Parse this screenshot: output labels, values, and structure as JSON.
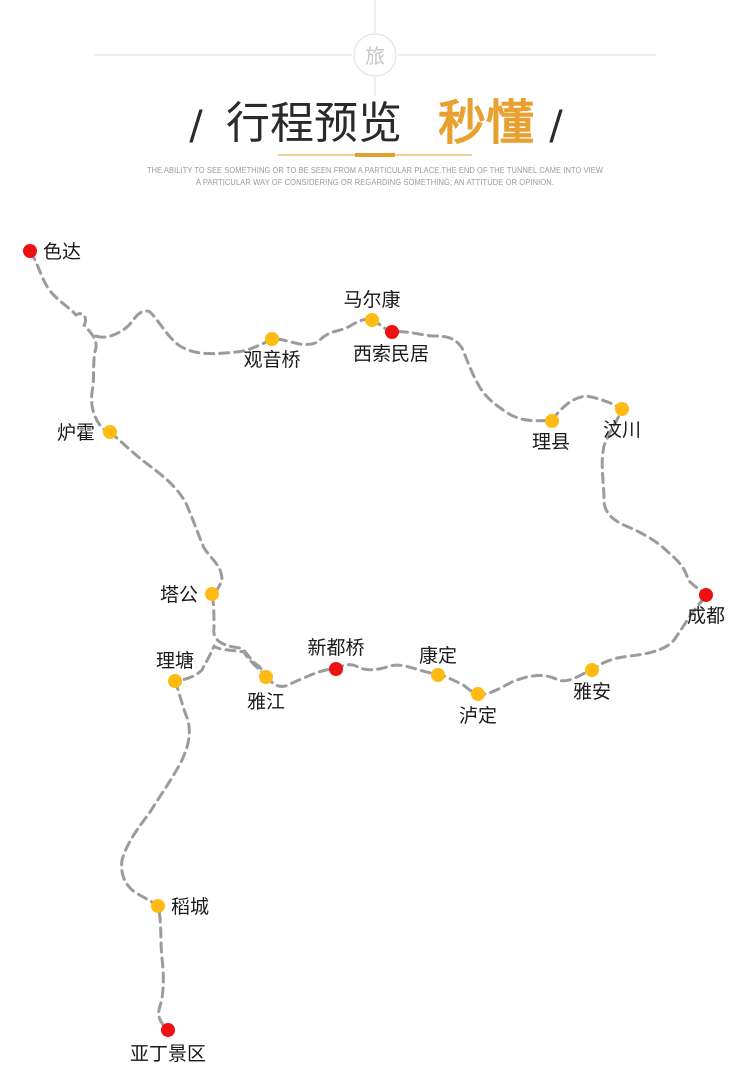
{
  "header": {
    "badge_char": "旅",
    "slash_left": "/",
    "title": "行程预览",
    "brand": "秒懂",
    "slash_right": "/",
    "subtitle_line1": "THE ABILITY TO SEE SOMETHING OR TO BE SEEN FROM A PARTICULAR PLACE.THE END OF THE TUNNEL CAME INTO VIEW",
    "subtitle_line2": "A PARTICULAR WAY OF CONSIDERING OR REGARDING SOMETHING; AN ATTITUDE OR OPINION."
  },
  "colors": {
    "route": "#9b9b9b",
    "stop_major": "#ee1111",
    "stop_minor": "#ffbb11",
    "brand": "#e8a030",
    "accent_line": "#e0a030",
    "rule": "#dddddd"
  },
  "map": {
    "places": [
      {
        "id": "seda",
        "name": "色达",
        "type": "major"
      },
      {
        "id": "maerkang",
        "name": "马尔康",
        "type": "minor"
      },
      {
        "id": "xisuo",
        "name": "西索民居",
        "type": "major"
      },
      {
        "id": "guanyinqiao",
        "name": "观音桥",
        "type": "minor"
      },
      {
        "id": "luhuo",
        "name": "炉霍",
        "type": "minor"
      },
      {
        "id": "lixian",
        "name": "理县",
        "type": "minor"
      },
      {
        "id": "wenchuan",
        "name": "汶川",
        "type": "minor"
      },
      {
        "id": "chengdu",
        "name": "成都",
        "type": "major"
      },
      {
        "id": "tagong",
        "name": "塔公",
        "type": "minor"
      },
      {
        "id": "xinduqiao",
        "name": "新都桥",
        "type": "major"
      },
      {
        "id": "kangding",
        "name": "康定",
        "type": "minor"
      },
      {
        "id": "litang",
        "name": "理塘",
        "type": "minor"
      },
      {
        "id": "yajiang",
        "name": "雅江",
        "type": "minor"
      },
      {
        "id": "luding",
        "name": "泸定",
        "type": "minor"
      },
      {
        "id": "yaan",
        "name": "雅安",
        "type": "minor"
      },
      {
        "id": "daocheng",
        "name": "稻城",
        "type": "minor"
      },
      {
        "id": "yading",
        "name": "亚丁景区",
        "type": "major"
      }
    ]
  }
}
